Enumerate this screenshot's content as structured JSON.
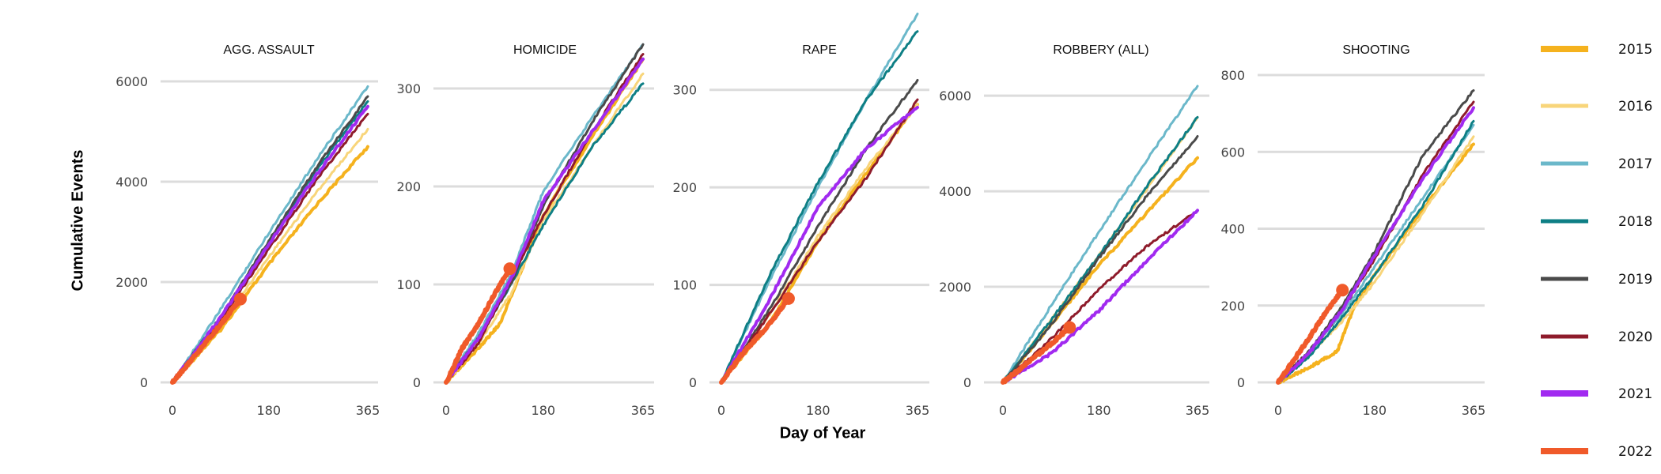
{
  "figure": {
    "ylabel": "Cumulative Events",
    "xlabel": "Day of Year"
  },
  "legend": [
    {
      "label": "2015",
      "color": "#F5B21E"
    },
    {
      "label": "2016",
      "color": "#F8D57A"
    },
    {
      "label": "2017",
      "color": "#6BB8CA"
    },
    {
      "label": "2018",
      "color": "#0E7F85"
    },
    {
      "label": "2019",
      "color": "#4A4A4A"
    },
    {
      "label": "2020",
      "color": "#8E1B2B"
    },
    {
      "label": "2021",
      "color": "#A12AF0"
    },
    {
      "label": "2022",
      "color": "#F05A2A"
    }
  ],
  "chart_data": [
    {
      "type": "line",
      "title": "AGG. ASSAULT",
      "x_ticks": [
        0,
        180,
        365
      ],
      "y_ticks": [
        0,
        2000,
        4000,
        6000
      ],
      "xlim": [
        0,
        365
      ],
      "ylim": [
        0,
        6000
      ],
      "series": [
        {
          "name": "2015",
          "x": [
            0,
            90,
            180,
            270,
            365
          ],
          "y": [
            0,
            1050,
            2350,
            3550,
            4700
          ]
        },
        {
          "name": "2016",
          "x": [
            0,
            90,
            180,
            270,
            365
          ],
          "y": [
            0,
            1150,
            2500,
            3800,
            5050
          ]
        },
        {
          "name": "2017",
          "x": [
            0,
            90,
            180,
            270,
            365
          ],
          "y": [
            0,
            1450,
            2980,
            4450,
            5900
          ]
        },
        {
          "name": "2018",
          "x": [
            0,
            90,
            180,
            270,
            365
          ],
          "y": [
            0,
            1300,
            2800,
            4250,
            5600
          ]
        },
        {
          "name": "2019",
          "x": [
            0,
            90,
            180,
            270,
            365
          ],
          "y": [
            0,
            1300,
            2820,
            4300,
            5700
          ]
        },
        {
          "name": "2020",
          "x": [
            0,
            90,
            180,
            270,
            365
          ],
          "y": [
            0,
            1250,
            2650,
            4050,
            5350
          ]
        },
        {
          "name": "2021",
          "x": [
            0,
            90,
            180,
            270,
            365
          ],
          "y": [
            0,
            1300,
            2750,
            4150,
            5500
          ]
        },
        {
          "name": "2022",
          "x": [
            0,
            40,
            90,
            127
          ],
          "y": [
            0,
            500,
            1150,
            1660
          ],
          "endpoint": [
            127,
            1660
          ]
        }
      ]
    },
    {
      "type": "line",
      "title": "HOMICIDE",
      "x_ticks": [
        0,
        180,
        365
      ],
      "y_ticks": [
        0,
        100,
        200,
        300
      ],
      "xlim": [
        0,
        365
      ],
      "ylim": [
        0,
        350
      ],
      "series": [
        {
          "name": "2015",
          "x": [
            0,
            60,
            100,
            180,
            270,
            365
          ],
          "y": [
            0,
            35,
            60,
            170,
            250,
            330
          ]
        },
        {
          "name": "2016",
          "x": [
            0,
            60,
            120,
            180,
            270,
            365
          ],
          "y": [
            0,
            40,
            90,
            165,
            240,
            315
          ]
        },
        {
          "name": "2017",
          "x": [
            0,
            60,
            120,
            180,
            270,
            365
          ],
          "y": [
            0,
            50,
            110,
            195,
            270,
            345
          ]
        },
        {
          "name": "2018",
          "x": [
            0,
            60,
            120,
            180,
            270,
            365
          ],
          "y": [
            0,
            45,
            100,
            160,
            240,
            305
          ]
        },
        {
          "name": "2019",
          "x": [
            0,
            60,
            120,
            180,
            270,
            365
          ],
          "y": [
            0,
            45,
            100,
            180,
            265,
            345
          ]
        },
        {
          "name": "2020",
          "x": [
            0,
            60,
            120,
            180,
            270,
            365
          ],
          "y": [
            0,
            40,
            105,
            170,
            255,
            335
          ]
        },
        {
          "name": "2021",
          "x": [
            0,
            60,
            120,
            180,
            270,
            365
          ],
          "y": [
            0,
            45,
            105,
            185,
            255,
            330
          ]
        },
        {
          "name": "2022",
          "x": [
            0,
            30,
            60,
            90,
            118
          ],
          "y": [
            0,
            35,
            60,
            90,
            116
          ],
          "endpoint": [
            118,
            116
          ]
        }
      ]
    },
    {
      "type": "line",
      "title": "RAPE",
      "x_ticks": [
        0,
        180,
        365
      ],
      "y_ticks": [
        0,
        100,
        200,
        300
      ],
      "xlim": [
        0,
        365
      ],
      "ylim": [
        0,
        380
      ],
      "series": [
        {
          "name": "2015",
          "x": [
            0,
            90,
            180,
            270,
            365
          ],
          "y": [
            0,
            60,
            145,
            215,
            285
          ]
        },
        {
          "name": "2016",
          "x": [
            0,
            90,
            180,
            270,
            365
          ],
          "y": [
            0,
            70,
            150,
            220,
            285
          ]
        },
        {
          "name": "2017",
          "x": [
            0,
            90,
            180,
            270,
            365
          ],
          "y": [
            0,
            105,
            200,
            290,
            378
          ]
        },
        {
          "name": "2018",
          "x": [
            0,
            90,
            180,
            270,
            365
          ],
          "y": [
            0,
            110,
            205,
            290,
            360
          ]
        },
        {
          "name": "2019",
          "x": [
            0,
            90,
            180,
            270,
            365
          ],
          "y": [
            0,
            75,
            160,
            240,
            310
          ]
        },
        {
          "name": "2020",
          "x": [
            0,
            90,
            180,
            270,
            365
          ],
          "y": [
            0,
            70,
            145,
            210,
            290
          ]
        },
        {
          "name": "2021",
          "x": [
            0,
            90,
            180,
            270,
            365
          ],
          "y": [
            0,
            85,
            180,
            240,
            282
          ]
        },
        {
          "name": "2022",
          "x": [
            0,
            40,
            90,
            125
          ],
          "y": [
            0,
            30,
            60,
            86
          ],
          "endpoint": [
            125,
            86
          ]
        }
      ]
    },
    {
      "type": "line",
      "title": "ROBBERY (ALL)",
      "x_ticks": [
        0,
        180,
        365
      ],
      "y_ticks": [
        0,
        2000,
        4000,
        6000
      ],
      "xlim": [
        0,
        365
      ],
      "ylim": [
        0,
        6300
      ],
      "series": [
        {
          "name": "2015",
          "x": [
            0,
            90,
            180,
            270,
            365
          ],
          "y": [
            0,
            1200,
            2450,
            3550,
            4700
          ]
        },
        {
          "name": "2016",
          "x": [
            0,
            90,
            180,
            270,
            365
          ],
          "y": [
            0,
            1300,
            2650,
            4050,
            5550
          ]
        },
        {
          "name": "2017",
          "x": [
            0,
            90,
            180,
            270,
            365
          ],
          "y": [
            0,
            1600,
            3150,
            4650,
            6200
          ]
        },
        {
          "name": "2018",
          "x": [
            0,
            90,
            180,
            270,
            365
          ],
          "y": [
            0,
            1300,
            2650,
            4100,
            5550
          ]
        },
        {
          "name": "2019",
          "x": [
            0,
            90,
            180,
            270,
            365
          ],
          "y": [
            0,
            1200,
            2600,
            3900,
            5150
          ]
        },
        {
          "name": "2020",
          "x": [
            0,
            90,
            180,
            270,
            365
          ],
          "y": [
            0,
            900,
            1950,
            2850,
            3600
          ]
        },
        {
          "name": "2021",
          "x": [
            0,
            90,
            180,
            270,
            365
          ],
          "y": [
            0,
            600,
            1500,
            2550,
            3600
          ]
        },
        {
          "name": "2022",
          "x": [
            0,
            40,
            90,
            125
          ],
          "y": [
            0,
            350,
            800,
            1150
          ],
          "endpoint": [
            125,
            1150
          ]
        }
      ]
    },
    {
      "type": "line",
      "title": "SHOOTING",
      "x_ticks": [
        0,
        180,
        365
      ],
      "y_ticks": [
        0,
        200,
        400,
        600,
        800
      ],
      "xlim": [
        0,
        365
      ],
      "ylim": [
        0,
        800
      ],
      "series": [
        {
          "name": "2015",
          "x": [
            0,
            60,
            110,
            140,
            180,
            270,
            365
          ],
          "y": [
            0,
            40,
            80,
            190,
            280,
            450,
            620
          ]
        },
        {
          "name": "2016",
          "x": [
            0,
            60,
            120,
            180,
            270,
            365
          ],
          "y": [
            0,
            75,
            160,
            260,
            440,
            640
          ]
        },
        {
          "name": "2017",
          "x": [
            0,
            60,
            120,
            180,
            270,
            365
          ],
          "y": [
            0,
            80,
            180,
            300,
            480,
            670
          ]
        },
        {
          "name": "2018",
          "x": [
            0,
            60,
            120,
            180,
            270,
            365
          ],
          "y": [
            0,
            70,
            170,
            280,
            460,
            680
          ]
        },
        {
          "name": "2019",
          "x": [
            0,
            60,
            120,
            180,
            270,
            365
          ],
          "y": [
            0,
            85,
            200,
            340,
            590,
            760
          ]
        },
        {
          "name": "2020",
          "x": [
            0,
            60,
            120,
            180,
            270,
            365
          ],
          "y": [
            0,
            80,
            190,
            320,
            540,
            730
          ]
        },
        {
          "name": "2021",
          "x": [
            0,
            60,
            120,
            180,
            270,
            365
          ],
          "y": [
            0,
            80,
            190,
            330,
            530,
            715
          ]
        },
        {
          "name": "2022",
          "x": [
            0,
            30,
            60,
            90,
            120
          ],
          "y": [
            0,
            60,
            120,
            185,
            240
          ],
          "endpoint": [
            120,
            240
          ]
        }
      ]
    }
  ]
}
